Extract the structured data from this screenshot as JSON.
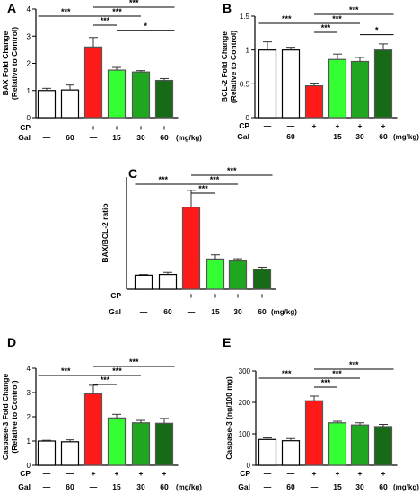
{
  "chart_data": [
    {
      "type": "bar",
      "panel": "A",
      "ylabel": [
        "BAX Fold Change",
        "(Relative to Control)"
      ],
      "ylim": [
        0,
        4
      ],
      "yticks": [
        0,
        1,
        2,
        3,
        4
      ],
      "categories": [
        "1",
        "2",
        "3",
        "4",
        "5",
        "6"
      ],
      "values": [
        1.0,
        1.02,
        2.6,
        1.75,
        1.68,
        1.37
      ],
      "errors": [
        0.08,
        0.18,
        0.35,
        0.1,
        0.05,
        0.07
      ],
      "colors": [
        "#ffffff",
        "#ffffff",
        "#ff1a1a",
        "#33ff33",
        "#1fa81f",
        "#176b17"
      ],
      "significance": [
        {
          "from": 0,
          "to": 2,
          "label": "***"
        },
        {
          "from": 2,
          "to": 3,
          "label": "***"
        },
        {
          "from": 2,
          "to": 4,
          "label": "***"
        },
        {
          "from": 2,
          "to": 5,
          "label": "***"
        },
        {
          "from": 3,
          "to": 5,
          "label": "*"
        }
      ],
      "treatment_rows": [
        {
          "label": "CP",
          "cells": [
            "—",
            "—",
            "+",
            "+",
            "+",
            "+"
          ]
        },
        {
          "label": "Gal",
          "cells": [
            "—",
            "60",
            "—",
            "15",
            "30",
            "60"
          ]
        }
      ],
      "units": "(mg/kg)"
    },
    {
      "type": "bar",
      "panel": "B",
      "ylabel": [
        "BCL-2 Fold Change",
        "(Relative to Control)"
      ],
      "ylim": [
        0,
        1.5
      ],
      "yticks": [
        0.0,
        0.5,
        1.0,
        1.5
      ],
      "categories": [
        "1",
        "2",
        "3",
        "4",
        "5",
        "6"
      ],
      "values": [
        1.0,
        1.0,
        0.47,
        0.86,
        0.83,
        1.0
      ],
      "errors": [
        0.12,
        0.04,
        0.04,
        0.08,
        0.06,
        0.09
      ],
      "colors": [
        "#ffffff",
        "#ffffff",
        "#ff1a1a",
        "#33ff33",
        "#1fa81f",
        "#176b17"
      ],
      "significance": [
        {
          "from": 0,
          "to": 2,
          "label": "***"
        },
        {
          "from": 2,
          "to": 3,
          "label": "***"
        },
        {
          "from": 2,
          "to": 4,
          "label": "***"
        },
        {
          "from": 2,
          "to": 5,
          "label": "***"
        },
        {
          "from": 4,
          "to": 5,
          "label": "*"
        }
      ],
      "treatment_rows": [
        {
          "label": "CP",
          "cells": [
            "—",
            "—",
            "+",
            "+",
            "+",
            "+"
          ]
        },
        {
          "label": "Gal",
          "cells": [
            "—",
            "60",
            "—",
            "15",
            "30",
            "60"
          ]
        }
      ],
      "units": "(mg/kg)"
    },
    {
      "type": "bar",
      "panel": "C",
      "ylabel": [
        "BAX/BCL-2 ratio"
      ],
      "ylim": [
        0,
        8
      ],
      "yticks": [],
      "categories": [
        "1",
        "2",
        "3",
        "4",
        "5",
        "6"
      ],
      "values": [
        1.0,
        1.05,
        5.85,
        2.15,
        2.02,
        1.42
      ],
      "errors": [
        0.05,
        0.15,
        1.2,
        0.3,
        0.15,
        0.15
      ],
      "colors": [
        "#ffffff",
        "#ffffff",
        "#ff1a1a",
        "#33ff33",
        "#1fa81f",
        "#176b17"
      ],
      "significance": [
        {
          "from": 0,
          "to": 2,
          "label": "***"
        },
        {
          "from": 2,
          "to": 3,
          "label": "***"
        },
        {
          "from": 2,
          "to": 4,
          "label": "***"
        },
        {
          "from": 2,
          "to": 5,
          "label": "***"
        }
      ],
      "treatment_rows": [
        {
          "label": "CP",
          "cells": [
            "—",
            "—",
            "+",
            "+",
            "+",
            "+"
          ]
        },
        {
          "label": "Gal",
          "cells": [
            "—",
            "60",
            "—",
            "15",
            "30",
            "60"
          ]
        }
      ],
      "units": "(mg/kg)"
    },
    {
      "type": "bar",
      "panel": "D",
      "ylabel": [
        "Caspase-3 Fold Change",
        "(Relative to Control)"
      ],
      "ylim": [
        0,
        4
      ],
      "yticks": [
        0,
        1,
        2,
        3,
        4
      ],
      "categories": [
        "1",
        "2",
        "3",
        "4",
        "5",
        "6"
      ],
      "values": [
        1.0,
        0.97,
        2.95,
        1.95,
        1.75,
        1.73
      ],
      "errors": [
        0.03,
        0.08,
        0.35,
        0.15,
        0.1,
        0.2
      ],
      "colors": [
        "#ffffff",
        "#ffffff",
        "#ff1a1a",
        "#33ff33",
        "#1fa81f",
        "#176b17"
      ],
      "significance": [
        {
          "from": 0,
          "to": 2,
          "label": "***"
        },
        {
          "from": 2,
          "to": 3,
          "label": "***"
        },
        {
          "from": 2,
          "to": 4,
          "label": "***"
        },
        {
          "from": 2,
          "to": 5,
          "label": "***"
        }
      ],
      "treatment_rows": [
        {
          "label": "CP",
          "cells": [
            "—",
            "—",
            "+",
            "+",
            "+",
            "+"
          ]
        },
        {
          "label": "Gal",
          "cells": [
            "—",
            "60",
            "—",
            "15",
            "30",
            "60"
          ]
        }
      ],
      "units": "(mg/kg)"
    },
    {
      "type": "bar",
      "panel": "E",
      "ylabel": [
        "Caspase-3 (ng/100 mg)"
      ],
      "ylim": [
        0,
        300
      ],
      "yticks": [
        0,
        100,
        200,
        300
      ],
      "categories": [
        "1",
        "2",
        "3",
        "4",
        "5",
        "6"
      ],
      "values": [
        82,
        78,
        205,
        135,
        128,
        123
      ],
      "errors": [
        5,
        7,
        15,
        5,
        7,
        7
      ],
      "colors": [
        "#ffffff",
        "#ffffff",
        "#ff1a1a",
        "#33ff33",
        "#1fa81f",
        "#176b17"
      ],
      "significance": [
        {
          "from": 0,
          "to": 2,
          "label": "***"
        },
        {
          "from": 2,
          "to": 3,
          "label": "***"
        },
        {
          "from": 2,
          "to": 4,
          "label": "***"
        },
        {
          "from": 2,
          "to": 5,
          "label": "***"
        }
      ],
      "treatment_rows": [
        {
          "label": "CP",
          "cells": [
            "—",
            "—",
            "+",
            "+",
            "+",
            "+"
          ]
        },
        {
          "label": "Gal",
          "cells": [
            "—",
            "60",
            "—",
            "15",
            "30",
            "60"
          ]
        }
      ],
      "units": "(mg/kg)"
    }
  ]
}
